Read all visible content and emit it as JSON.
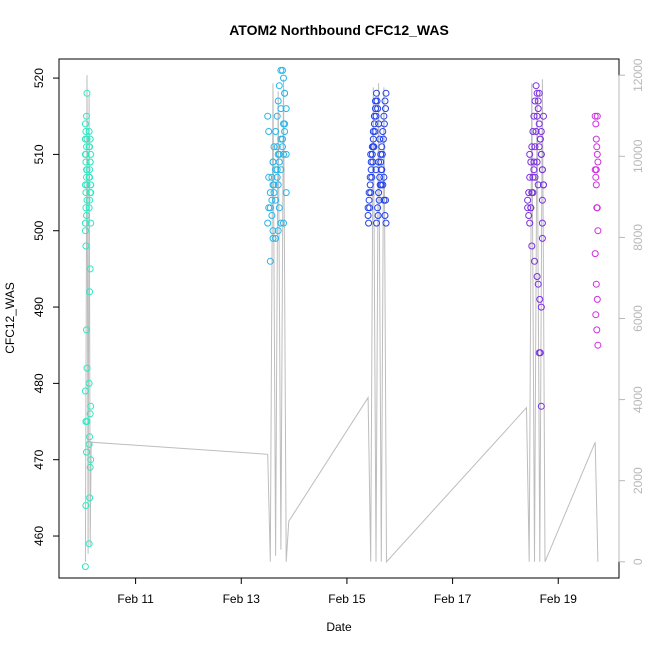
{
  "chart_data": {
    "type": "scatter",
    "title": "ATOM2 Northbound CFC12_WAS",
    "xlabel": "Date",
    "ylabel": "CFC12_WAS",
    "x_ticks": [
      "Feb 11",
      "Feb 13",
      "Feb 15",
      "Feb 17",
      "Feb 19"
    ],
    "x_tick_values": [
      11,
      13,
      15,
      17,
      19
    ],
    "xlim": [
      9.55,
      20.15
    ],
    "y_ticks": [
      460,
      470,
      480,
      490,
      500,
      510,
      520
    ],
    "ylim": [
      454.5,
      522.5
    ],
    "y2_ticks": [
      0,
      2000,
      4000,
      6000,
      8000,
      10000,
      12000
    ],
    "y2lim": [
      -400,
      12400
    ],
    "y2_color": "#b8b8b8",
    "secondary_line": {
      "name": "",
      "color": "#bdbdbd",
      "x": [
        10.05,
        10.08,
        10.1,
        10.12,
        10.14,
        10.16,
        13.5,
        13.55,
        13.6,
        13.65,
        13.7,
        13.75,
        13.8,
        13.85,
        13.9,
        15.4,
        15.45,
        15.5,
        15.55,
        15.6,
        15.65,
        15.7,
        15.75,
        18.4,
        18.45,
        18.5,
        18.55,
        18.6,
        18.65,
        18.7,
        18.75,
        19.7,
        19.75
      ],
      "y": [
        0,
        12000,
        200,
        11500,
        400,
        2950,
        2650,
        0,
        11800,
        150,
        11600,
        300,
        11900,
        0,
        1000,
        4050,
        0,
        11700,
        0,
        11800,
        0,
        11700,
        0,
        3800,
        0,
        11800,
        0,
        11600,
        0,
        11900,
        0,
        2950,
        0
      ]
    },
    "series": [
      {
        "color": "#2ee8c2",
        "x": [
          10.05,
          10.06,
          10.07,
          10.08,
          10.06,
          10.05,
          10.08,
          10.07,
          10.06,
          10.05,
          10.07,
          10.08,
          10.06,
          10.05,
          10.07,
          10.08,
          10.06,
          10.05,
          10.07,
          10.08,
          10.06,
          10.05,
          10.07,
          10.08,
          10.06,
          10.05,
          10.07,
          10.08,
          10.06,
          10.05,
          10.12,
          10.13,
          10.14,
          10.15,
          10.12,
          10.13,
          10.14,
          10.15,
          10.12,
          10.13,
          10.14,
          10.15,
          10.12,
          10.13,
          10.14,
          10.15,
          10.12,
          10.13,
          10.14,
          10.15,
          10.13,
          10.14,
          10.12,
          10.15,
          10.13,
          10.14,
          10.12,
          10.15
        ],
        "y": [
          456,
          464,
          471,
          475,
          475,
          479,
          482,
          487,
          498,
          500,
          502,
          504,
          505,
          506,
          507,
          508,
          509,
          510,
          511,
          512,
          513,
          514,
          515,
          518,
          503,
          501,
          508,
          506,
          510,
          512,
          459,
          465,
          469,
          470,
          472,
          473,
          476,
          477,
          480,
          492,
          495,
          501,
          503,
          504,
          505,
          506,
          507,
          508,
          509,
          510,
          511,
          512,
          513,
          505,
          507,
          509,
          511,
          506
        ]
      },
      {
        "color": "#29b6ea",
        "x": [
          13.5,
          13.52,
          13.55,
          13.58,
          13.6,
          13.62,
          13.65,
          13.68,
          13.7,
          13.72,
          13.75,
          13.78,
          13.8,
          13.82,
          13.85,
          13.5,
          13.55,
          13.6,
          13.65,
          13.7,
          13.75,
          13.8,
          13.85,
          13.52,
          13.58,
          13.62,
          13.68,
          13.72,
          13.78,
          13.82,
          13.55,
          13.6,
          13.65,
          13.7,
          13.75,
          13.8,
          13.58,
          13.62,
          13.68,
          13.72,
          13.78,
          13.82,
          13.65,
          13.7,
          13.75,
          13.8,
          13.6,
          13.72,
          13.85,
          13.52,
          13.6,
          13.68,
          13.75,
          13.82
        ],
        "y": [
          501,
          503,
          505,
          507,
          509,
          511,
          513,
          515,
          517,
          519,
          521,
          521,
          520,
          518,
          516,
          515,
          496,
          499,
          499,
          500,
          501,
          501,
          510,
          513,
          504,
          506,
          508,
          510,
          512,
          514,
          503,
          506,
          508,
          510,
          512,
          514,
          502,
          505,
          507,
          509,
          511,
          513,
          504,
          506,
          508,
          510,
          500,
          503,
          505,
          507,
          509,
          511,
          516,
          518
        ]
      },
      {
        "color": "#2241ee",
        "x": [
          15.4,
          15.42,
          15.44,
          15.46,
          15.48,
          15.5,
          15.52,
          15.54,
          15.56,
          15.58,
          15.6,
          15.62,
          15.64,
          15.66,
          15.68,
          15.7,
          15.72,
          15.74,
          15.4,
          15.42,
          15.44,
          15.46,
          15.48,
          15.5,
          15.52,
          15.54,
          15.56,
          15.58,
          15.6,
          15.62,
          15.64,
          15.66,
          15.68,
          15.7,
          15.72,
          15.74,
          15.41,
          15.43,
          15.45,
          15.47,
          15.49,
          15.51,
          15.53,
          15.55,
          15.57,
          15.59,
          15.61,
          15.63,
          15.65,
          15.67,
          15.69,
          15.71,
          15.73,
          15.45,
          15.55,
          15.65,
          15.73,
          15.5,
          15.6,
          15.7
        ],
        "y": [
          503,
          505,
          507,
          509,
          511,
          513,
          515,
          517,
          518,
          516,
          514,
          512,
          510,
          508,
          506,
          504,
          502,
          501,
          502,
          504,
          506,
          508,
          510,
          512,
          514,
          516,
          501,
          503,
          505,
          507,
          509,
          511,
          513,
          515,
          517,
          518,
          501,
          503,
          505,
          507,
          509,
          511,
          513,
          515,
          517,
          502,
          504,
          506,
          508,
          510,
          512,
          514,
          516,
          510,
          508,
          506,
          504,
          511,
          509,
          507
        ]
      },
      {
        "color": "#7a2ee6",
        "x": [
          18.42,
          18.44,
          18.46,
          18.48,
          18.5,
          18.52,
          18.54,
          18.56,
          18.58,
          18.6,
          18.62,
          18.64,
          18.66,
          18.68,
          18.7,
          18.72,
          18.42,
          18.44,
          18.46,
          18.48,
          18.5,
          18.52,
          18.54,
          18.56,
          18.58,
          18.6,
          18.62,
          18.64,
          18.66,
          18.68,
          18.7,
          18.72,
          18.5,
          18.55,
          18.6,
          18.62,
          18.65,
          18.68,
          18.7,
          18.64,
          18.66,
          18.68,
          18.7,
          18.48,
          18.52,
          18.56,
          18.6,
          18.64,
          18.68,
          18.72,
          18.46,
          18.54,
          18.62,
          18.7
        ],
        "y": [
          503,
          505,
          507,
          509,
          511,
          513,
          515,
          517,
          519,
          518,
          516,
          514,
          512,
          510,
          508,
          506,
          504,
          502,
          501,
          503,
          505,
          507,
          509,
          511,
          513,
          515,
          517,
          518,
          512,
          510,
          508,
          506,
          498,
          496,
          494,
          493,
          491,
          490,
          499,
          484,
          484,
          477,
          501,
          503,
          505,
          507,
          509,
          511,
          513,
          515,
          510,
          508,
          506,
          504
        ]
      },
      {
        "color": "#d12ee0",
        "x": [
          19.7,
          19.71,
          19.72,
          19.73,
          19.74,
          19.75,
          19.7,
          19.71,
          19.72,
          19.73,
          19.74,
          19.75,
          19.7,
          19.72,
          19.74,
          19.71,
          19.73,
          19.75,
          19.72,
          19.74
        ],
        "y": [
          515,
          514,
          512,
          511,
          510,
          509,
          508,
          507,
          506,
          503,
          503,
          500,
          497,
          493,
          491,
          489,
          487,
          485,
          508,
          515
        ]
      }
    ]
  }
}
